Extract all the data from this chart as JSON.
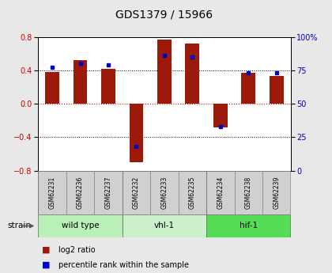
{
  "title": "GDS1379 / 15966",
  "samples": [
    "GSM62231",
    "GSM62236",
    "GSM62237",
    "GSM62232",
    "GSM62233",
    "GSM62235",
    "GSM62234",
    "GSM62238",
    "GSM62239"
  ],
  "log2_ratio": [
    0.38,
    0.52,
    0.42,
    -0.7,
    0.77,
    0.72,
    -0.28,
    0.37,
    0.33
  ],
  "percentile": [
    77,
    80,
    79,
    18,
    86,
    85,
    33,
    73,
    73
  ],
  "groups": [
    {
      "label": "wild type",
      "start": 0,
      "end": 3,
      "color": "#b8f0b8"
    },
    {
      "label": "vhl-1",
      "start": 3,
      "end": 6,
      "color": "#ccf0cc"
    },
    {
      "label": "hif-1",
      "start": 6,
      "end": 9,
      "color": "#55dd55"
    }
  ],
  "ylim": [
    -0.8,
    0.8
  ],
  "yticks_left": [
    -0.8,
    -0.4,
    0.0,
    0.4,
    0.8
  ],
  "yticks_right": [
    0,
    25,
    50,
    75,
    100
  ],
  "bar_color": "#9b1a0a",
  "marker_color": "#0000cc",
  "bg_color": "#e8e8e8",
  "plot_bg": "#ffffff",
  "label_red_color": "#cc0000",
  "label_blue_color": "#0000cc",
  "zero_line_color": "#cc0000",
  "bar_width": 0.5
}
